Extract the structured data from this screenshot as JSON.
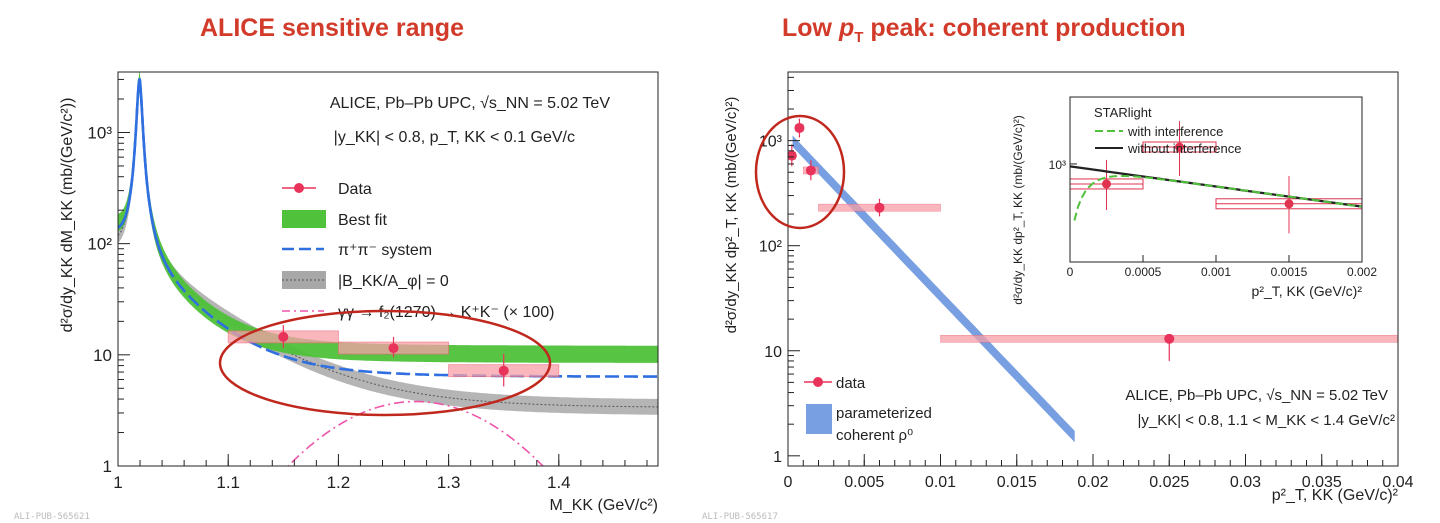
{
  "slide": {
    "left_title": "ALICE sensitive range",
    "right_title_pre": "Low ",
    "right_title_var": "p",
    "right_title_sub": "T",
    "right_title_post": " peak: coherent production",
    "left_ref": "ALI-PUB-565621",
    "right_ref": "ALI-PUB-565617"
  },
  "chart_data": [
    {
      "type": "line",
      "name": "mass-spectrum",
      "xlabel": "M_KK (GeV/c²)",
      "ylabel": "d²σ/dy_KK dM_KK (mb/(GeV/c²))",
      "xlim": [
        1.0,
        1.49
      ],
      "ylim": [
        1,
        3500
      ],
      "y_scale": "log",
      "x_ticks": [
        "1",
        "1.1",
        "1.2",
        "1.3",
        "1.4"
      ],
      "y_ticks": [
        "1",
        "10",
        "10²",
        "10³"
      ],
      "annotations": [
        "ALICE, Pb–Pb UPC, √s_NN = 5.02 TeV",
        "|y_KK| < 0.8, p_T, KK < 0.1 GeV/c"
      ],
      "legend": [
        "Data",
        "Best fit",
        "π⁺π⁻ system",
        "|B_KK/A_φ| = 0",
        "γγ → f₂(1270) → K⁺K⁻ (× 100)"
      ],
      "legend_position": "top-right",
      "colors": {
        "data": "#e8335a",
        "best_fit": "#4fc13a",
        "pipi": "#2f6fe0",
        "zero_band": "#9a9a9a",
        "f2": "#ee55aa",
        "highlight": "#c0281e"
      },
      "data": [
        {
          "x": 1.15,
          "y": 14.5,
          "xerr": 0.05,
          "yerr": [
            3.0,
            4.0
          ]
        },
        {
          "x": 1.25,
          "y": 11.5,
          "xerr": 0.05,
          "yerr": [
            2.0,
            3.0
          ]
        },
        {
          "x": 1.35,
          "y": 7.2,
          "xerr": 0.05,
          "yerr": [
            2.0,
            3.0
          ]
        }
      ],
      "peak_x": 1.02,
      "peak_y": 3000
    },
    {
      "type": "line",
      "name": "pt-spectrum",
      "xlabel": "p²_T, KK (GeV/c)²",
      "ylabel": "d²σ/dy_KK dp²_T, KK (mb/(GeV/c)²)",
      "xlim": [
        0,
        0.04
      ],
      "ylim": [
        0.8,
        4500
      ],
      "y_scale": "log",
      "x_ticks": [
        "0",
        "0.005",
        "0.01",
        "0.015",
        "0.02",
        "0.025",
        "0.03",
        "0.035",
        "0.04"
      ],
      "y_ticks": [
        "1",
        "10",
        "10²",
        "10³"
      ],
      "annotations": [
        "ALICE, Pb–Pb UPC, √s_NN = 5.02 TeV",
        "|y_KK| < 0.8,  1.1 < M_KK < 1.4 GeV/c²"
      ],
      "legend": [
        "data",
        "parameterized coherent ρ⁰"
      ],
      "legend_position": "bottom-left",
      "colors": {
        "data": "#e8335a",
        "coherent": "#4a7fd8"
      },
      "data": [
        {
          "x": 0.00025,
          "y": 720,
          "xerr": 0.00025,
          "yerr": [
            150,
            200
          ]
        },
        {
          "x": 0.00075,
          "y": 1320,
          "xerr": 0.00025,
          "yerr": [
            250,
            300
          ]
        },
        {
          "x": 0.0015,
          "y": 520,
          "xerr": 0.0005,
          "yerr": [
            100,
            130
          ]
        },
        {
          "x": 0.006,
          "y": 230,
          "xerr": 0.004,
          "yerr": [
            40,
            50
          ]
        },
        {
          "x": 0.025,
          "y": 13,
          "xerr": 0.015,
          "yerr": [
            5,
            6
          ]
        }
      ],
      "fit_slope_per_unit": -350
    },
    {
      "type": "line",
      "name": "inset",
      "title": "STARlight",
      "xlabel": "p²_T, KK (GeV/c)²",
      "ylabel": "d²σ/dy_KK dp²_T, KK (mb/(GeV/c)²)",
      "xlim": [
        0,
        0.002
      ],
      "ylim": [
        200,
        3000
      ],
      "y_scale": "log",
      "x_ticks": [
        "0",
        "0.0005",
        "0.001",
        "0.0015",
        "0.002"
      ],
      "y_ticks": [
        "10³"
      ],
      "legend": [
        "with interference",
        "without interference"
      ],
      "legend_position": "top-left",
      "colors": {
        "with_interference": "#4fc13a",
        "without_interference": "#222222"
      },
      "data": [
        {
          "x": 0.00025,
          "y": 720,
          "xerr": 0.00025,
          "yerr": [
            250,
            350
          ]
        },
        {
          "x": 0.00075,
          "y": 1320,
          "xerr": 0.00025,
          "yerr": [
            500,
            700
          ]
        },
        {
          "x": 0.0015,
          "y": 520,
          "xerr": 0.0005,
          "yerr": [
            200,
            300
          ]
        }
      ]
    }
  ]
}
